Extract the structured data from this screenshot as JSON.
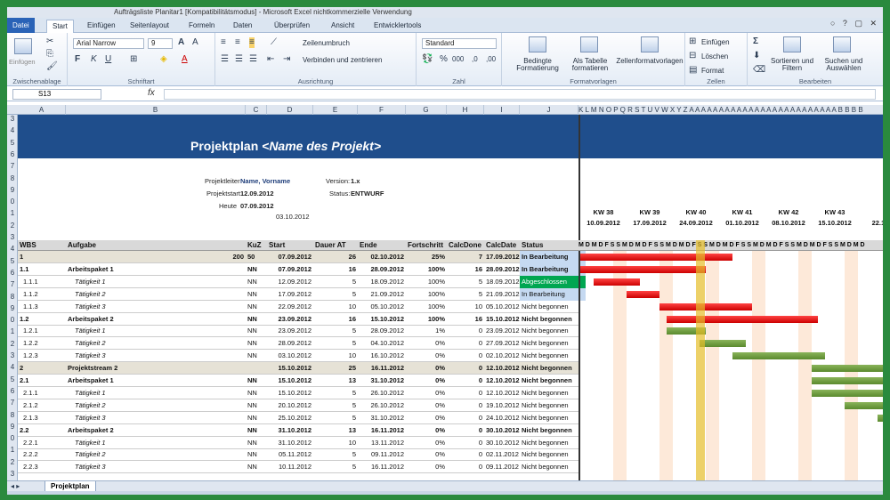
{
  "titlebar": {
    "text": "Aufträgsliste Planitar1 [Kompatibilitätsmodus] - Microsoft Excel nichtkommerzielle Verwendung",
    "window_controls": "○ ? ▢ ✕"
  },
  "tabs": [
    "Datei",
    "Start",
    "Einfügen",
    "Seitenlayout",
    "Formeln",
    "Daten",
    "Überprüfen",
    "Ansicht",
    "Entwicklertools"
  ],
  "ribbon": {
    "clipboard": {
      "paste": "Einfügen",
      "label": "Zwischenablage"
    },
    "font": {
      "name": "Arial Narrow",
      "size": "9",
      "label": "Schriftart"
    },
    "align": {
      "wrap": "Zeilenumbruch",
      "merge": "Verbinden und zentrieren",
      "label": "Ausrichtung"
    },
    "number": {
      "format": "Standard",
      "label": "Zahl"
    },
    "styles": {
      "cond": "Bedingte Formatierung",
      "table": "Als Tabelle formatieren",
      "cellstyles": "Zellenformatvorlagen",
      "label": "Formatvorlagen"
    },
    "cells": {
      "insert": "Einfügen",
      "delete": "Löschen",
      "format": "Format",
      "label": "Zellen"
    },
    "edit": {
      "sort": "Sortieren und Filtern",
      "find": "Suchen und Auswählen",
      "label": "Bearbeiten"
    }
  },
  "formula": {
    "namebox": "S13",
    "fx": "fx"
  },
  "columns": [
    "A",
    "B",
    "C",
    "D",
    "E",
    "F",
    "G",
    "H",
    "I",
    "J"
  ],
  "gantt_letters": "K L M N O P Q R S T U V W X Y Z A A A A A A A A A A A A A A A A A A A A A A A A A B B B B",
  "row_numbers": [
    "3",
    "4",
    "5",
    "6",
    "7",
    "8",
    "9",
    "0",
    "1",
    "2",
    "3",
    "4",
    "5",
    "6",
    "7",
    "8",
    "9",
    "0",
    "1",
    "2",
    "3",
    "4",
    "5",
    "6",
    "7",
    "8",
    "9",
    "0",
    "1",
    "2",
    "3"
  ],
  "project": {
    "title_prefix": "Projektplan ",
    "title_name": "<Name des Projekt>",
    "leiter_label": "Projektleiter",
    "leiter_value": "Name, Vorname",
    "start_label": "Projektstart",
    "start_value": "12.09.2012",
    "heute_label": "Heute",
    "heute_value": "07.09.2012",
    "version_label": "Version:",
    "version_value": "1.x",
    "status_label": "Status:",
    "status_value": "ENTWURF",
    "date_cell": "03.10.2012"
  },
  "weeks": [
    {
      "kw": "KW 38",
      "date": "10.09.2012"
    },
    {
      "kw": "KW 39",
      "date": "17.09.2012"
    },
    {
      "kw": "KW 40",
      "date": "24.09.2012"
    },
    {
      "kw": "KW 41",
      "date": "01.10.2012"
    },
    {
      "kw": "KW 42",
      "date": "08.10.2012"
    },
    {
      "kw": "KW 43",
      "date": "15.10.2012"
    },
    {
      "kw": "",
      "date": "22.10."
    }
  ],
  "day_header": "M D M D F S S M D M D F S S M D M D F S S M D M D F S S M D M D F S S M D M D F S S M D M D",
  "headers": {
    "wbs": "WBS",
    "task": "Aufgabe",
    "kuz": "KuZ",
    "start": "Start",
    "dauer": "Dauer AT",
    "ende": "Ende",
    "fort": "Fortschritt",
    "calcdone": "CalcDone",
    "calcdate": "CalcDate",
    "status": "Status"
  },
  "rows": [
    {
      "wbs": "1",
      "task": "",
      "kuz": "50",
      "a": "200",
      "start": "07.09.2012",
      "dauer": "26",
      "ende": "02.10.2012",
      "fort": "25%",
      "done": "7",
      "cdate": "17.09.2012",
      "status": "In Bearbeitung",
      "type": "stream",
      "sc": "#c5d9f1"
    },
    {
      "wbs": "1.1",
      "task": "Arbeitspaket 1",
      "kuz": "NN",
      "a": "",
      "start": "07.09.2012",
      "dauer": "16",
      "ende": "28.09.2012",
      "fort": "100%",
      "done": "16",
      "cdate": "28.09.2012",
      "status": "In Bearbeitung",
      "type": "pkg",
      "sc": "#c5d9f1"
    },
    {
      "wbs": "1.1.1",
      "task": "Tätigkeit 1",
      "kuz": "NN",
      "a": "",
      "start": "12.09.2012",
      "dauer": "5",
      "ende": "18.09.2012",
      "fort": "100%",
      "done": "5",
      "cdate": "18.09.2012",
      "status": "Abgeschlossen",
      "type": "act",
      "sc": "#00a651",
      "stc": "#fff"
    },
    {
      "wbs": "1.1.2",
      "task": "Tätigkeit 2",
      "kuz": "NN",
      "a": "",
      "start": "17.09.2012",
      "dauer": "5",
      "ende": "21.09.2012",
      "fort": "100%",
      "done": "5",
      "cdate": "21.09.2012",
      "status": "In Bearbeitung",
      "type": "act",
      "sc": "#c5d9f1"
    },
    {
      "wbs": "1.1.3",
      "task": "Tätigkeit 3",
      "kuz": "NN",
      "a": "",
      "start": "22.09.2012",
      "dauer": "10",
      "ende": "05.10.2012",
      "fort": "100%",
      "done": "10",
      "cdate": "05.10.2012",
      "status": "Nicht begonnen",
      "type": "act",
      "sc": ""
    },
    {
      "wbs": "1.2",
      "task": "Arbeitspaket 2",
      "kuz": "NN",
      "a": "",
      "start": "23.09.2012",
      "dauer": "16",
      "ende": "15.10.2012",
      "fort": "100%",
      "done": "16",
      "cdate": "15.10.2012",
      "status": "Nicht begonnen",
      "type": "pkg",
      "sc": ""
    },
    {
      "wbs": "1.2.1",
      "task": "Tätigkeit 1",
      "kuz": "NN",
      "a": "",
      "start": "23.09.2012",
      "dauer": "5",
      "ende": "28.09.2012",
      "fort": "1%",
      "done": "0",
      "cdate": "23.09.2012",
      "status": "Nicht begonnen",
      "type": "act",
      "sc": ""
    },
    {
      "wbs": "1.2.2",
      "task": "Tätigkeit 2",
      "kuz": "NN",
      "a": "",
      "start": "28.09.2012",
      "dauer": "5",
      "ende": "04.10.2012",
      "fort": "0%",
      "done": "0",
      "cdate": "27.09.2012",
      "status": "Nicht begonnen",
      "type": "act",
      "sc": ""
    },
    {
      "wbs": "1.2.3",
      "task": "Tätigkeit 3",
      "kuz": "NN",
      "a": "",
      "start": "03.10.2012",
      "dauer": "10",
      "ende": "16.10.2012",
      "fort": "0%",
      "done": "0",
      "cdate": "02.10.2012",
      "status": "Nicht begonnen",
      "type": "act",
      "sc": ""
    },
    {
      "wbs": "2",
      "task": "Projektstream 2",
      "kuz": "",
      "a": "",
      "start": "15.10.2012",
      "dauer": "25",
      "ende": "16.11.2012",
      "fort": "0%",
      "done": "0",
      "cdate": "12.10.2012",
      "status": "Nicht begonnen",
      "type": "stream",
      "sc": ""
    },
    {
      "wbs": "2.1",
      "task": "Arbeitspaket 1",
      "kuz": "NN",
      "a": "",
      "start": "15.10.2012",
      "dauer": "13",
      "ende": "31.10.2012",
      "fort": "0%",
      "done": "0",
      "cdate": "12.10.2012",
      "status": "Nicht begonnen",
      "type": "pkg",
      "sc": ""
    },
    {
      "wbs": "2.1.1",
      "task": "Tätigkeit 1",
      "kuz": "NN",
      "a": "",
      "start": "15.10.2012",
      "dauer": "5",
      "ende": "26.10.2012",
      "fort": "0%",
      "done": "0",
      "cdate": "12.10.2012",
      "status": "Nicht begonnen",
      "type": "act",
      "sc": ""
    },
    {
      "wbs": "2.1.2",
      "task": "Tätigkeit 2",
      "kuz": "NN",
      "a": "",
      "start": "20.10.2012",
      "dauer": "5",
      "ende": "26.10.2012",
      "fort": "0%",
      "done": "0",
      "cdate": "19.10.2012",
      "status": "Nicht begonnen",
      "type": "act",
      "sc": ""
    },
    {
      "wbs": "2.1.3",
      "task": "Tätigkeit 3",
      "kuz": "NN",
      "a": "",
      "start": "25.10.2012",
      "dauer": "5",
      "ende": "31.10.2012",
      "fort": "0%",
      "done": "0",
      "cdate": "24.10.2012",
      "status": "Nicht begonnen",
      "type": "act",
      "sc": ""
    },
    {
      "wbs": "2.2",
      "task": "Arbeitspaket 2",
      "kuz": "NN",
      "a": "",
      "start": "31.10.2012",
      "dauer": "13",
      "ende": "16.11.2012",
      "fort": "0%",
      "done": "0",
      "cdate": "30.10.2012",
      "status": "Nicht begonnen",
      "type": "pkg",
      "sc": ""
    },
    {
      "wbs": "2.2.1",
      "task": "Tätigkeit 1",
      "kuz": "NN",
      "a": "",
      "start": "31.10.2012",
      "dauer": "10",
      "ende": "13.11.2012",
      "fort": "0%",
      "done": "0",
      "cdate": "30.10.2012",
      "status": "Nicht begonnen",
      "type": "act",
      "sc": ""
    },
    {
      "wbs": "2.2.2",
      "task": "Tätigkeit 2",
      "kuz": "NN",
      "a": "",
      "start": "05.11.2012",
      "dauer": "5",
      "ende": "09.11.2012",
      "fort": "0%",
      "done": "0",
      "cdate": "02.11.2012",
      "status": "Nicht begonnen",
      "type": "act",
      "sc": ""
    },
    {
      "wbs": "2.2.3",
      "task": "Tätigkeit 3",
      "kuz": "NN",
      "a": "",
      "start": "10.11.2012",
      "dauer": "5",
      "ende": "16.11.2012",
      "fort": "0%",
      "done": "0",
      "cdate": "09.11.2012",
      "status": "Nicht begonnen",
      "type": "act",
      "sc": ""
    }
  ],
  "sheet": {
    "tab": "Projektplan"
  }
}
